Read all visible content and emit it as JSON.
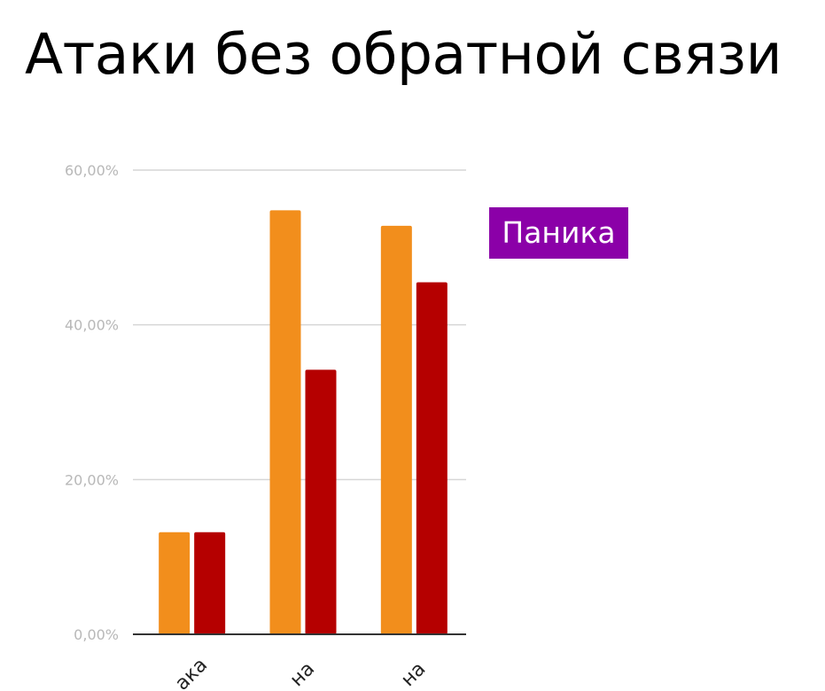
{
  "title": "Атаки без обратной связи",
  "legend_badge": {
    "label": "Паника",
    "color": "#8b00a8"
  },
  "colors": {
    "gridline": "#d6d6d6",
    "baseline": "#333333",
    "series": [
      "#f28e1c",
      "#b50000"
    ]
  },
  "chart_data": {
    "type": "bar",
    "title": "",
    "xlabel": "",
    "ylabel": "",
    "ylim": [
      0,
      60
    ],
    "yticks": [
      "0,00%",
      "20,00%",
      "40,00%",
      "60,00%"
    ],
    "grid": true,
    "categories": [
      "ака",
      "на",
      "на"
    ],
    "series": [
      {
        "values": [
          13.2,
          54.8,
          52.8
        ]
      },
      {
        "values": [
          13.2,
          34.2,
          45.5
        ]
      }
    ]
  }
}
